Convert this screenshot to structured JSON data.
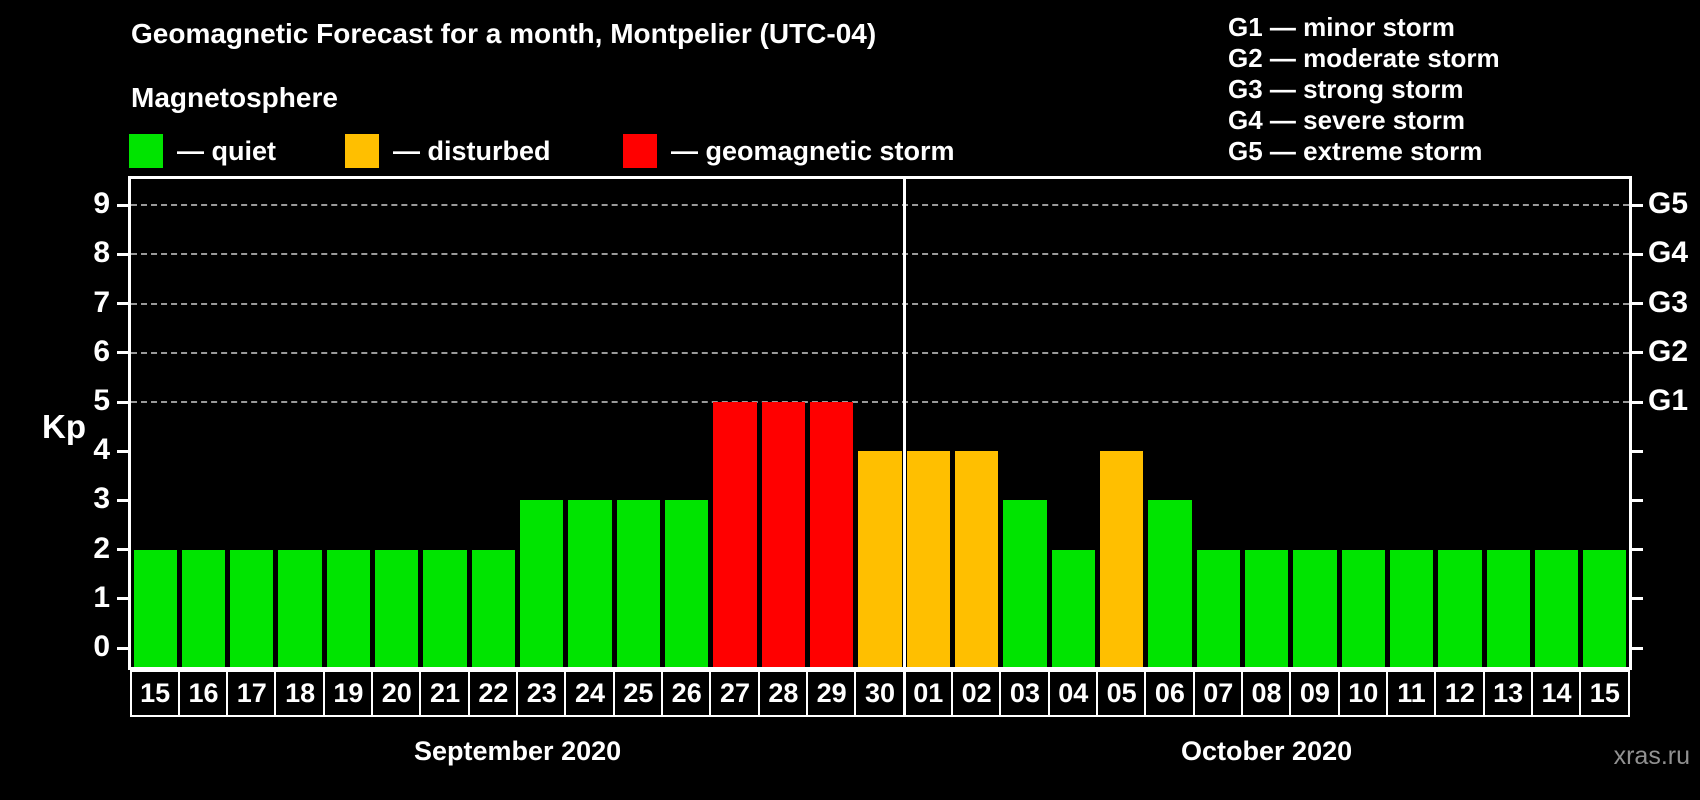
{
  "header": {
    "title": "Geomagnetic Forecast for a month, Montpelier (UTC-04)",
    "subtitle": "Magnetosphere"
  },
  "legend": {
    "items": [
      {
        "name": "quiet",
        "label": "— quiet",
        "color": "#00e400"
      },
      {
        "name": "disturbed",
        "label": "— disturbed",
        "color": "#ffbf00"
      },
      {
        "name": "storm",
        "label": "— geomagnetic storm",
        "color": "#ff0000"
      }
    ]
  },
  "g_scale_legend": [
    "G1 — minor storm",
    "G2 — moderate storm",
    "G3 — strong storm",
    "G4 — severe storm",
    "G5 — extreme storm"
  ],
  "watermark": "xras.ru",
  "chart_data": {
    "type": "bar",
    "title": "Geomagnetic Forecast for a month, Montpelier (UTC-04)",
    "ylabel": "Kp",
    "ylim": [
      0,
      9
    ],
    "yticks": [
      0,
      1,
      2,
      3,
      4,
      5,
      6,
      7,
      8,
      9
    ],
    "gridlines_at": [
      5,
      6,
      7,
      8,
      9
    ],
    "grid": "dashed horizontal at storm levels only",
    "right_axis_labels": [
      {
        "kp": 5,
        "label": "G1"
      },
      {
        "kp": 6,
        "label": "G2"
      },
      {
        "kp": 7,
        "label": "G3"
      },
      {
        "kp": 8,
        "label": "G4"
      },
      {
        "kp": 9,
        "label": "G5"
      }
    ],
    "status_colors": {
      "quiet": "#00e400",
      "disturbed": "#ffbf00",
      "storm": "#ff0000"
    },
    "month_groups": [
      {
        "label": "September 2020",
        "count": 16
      },
      {
        "label": "October 2020",
        "count": 15
      }
    ],
    "bars": [
      {
        "day": "15",
        "kp": 2,
        "status": "quiet"
      },
      {
        "day": "16",
        "kp": 2,
        "status": "quiet"
      },
      {
        "day": "17",
        "kp": 2,
        "status": "quiet"
      },
      {
        "day": "18",
        "kp": 2,
        "status": "quiet"
      },
      {
        "day": "19",
        "kp": 2,
        "status": "quiet"
      },
      {
        "day": "20",
        "kp": 2,
        "status": "quiet"
      },
      {
        "day": "21",
        "kp": 2,
        "status": "quiet"
      },
      {
        "day": "22",
        "kp": 2,
        "status": "quiet"
      },
      {
        "day": "23",
        "kp": 3,
        "status": "quiet"
      },
      {
        "day": "24",
        "kp": 3,
        "status": "quiet"
      },
      {
        "day": "25",
        "kp": 3,
        "status": "quiet"
      },
      {
        "day": "26",
        "kp": 3,
        "status": "quiet"
      },
      {
        "day": "27",
        "kp": 5,
        "status": "storm"
      },
      {
        "day": "28",
        "kp": 5,
        "status": "storm"
      },
      {
        "day": "29",
        "kp": 5,
        "status": "storm"
      },
      {
        "day": "30",
        "kp": 4,
        "status": "disturbed"
      },
      {
        "day": "01",
        "kp": 4,
        "status": "disturbed"
      },
      {
        "day": "02",
        "kp": 4,
        "status": "disturbed"
      },
      {
        "day": "03",
        "kp": 3,
        "status": "quiet"
      },
      {
        "day": "04",
        "kp": 2,
        "status": "quiet"
      },
      {
        "day": "05",
        "kp": 4,
        "status": "disturbed"
      },
      {
        "day": "06",
        "kp": 3,
        "status": "quiet"
      },
      {
        "day": "07",
        "kp": 2,
        "status": "quiet"
      },
      {
        "day": "08",
        "kp": 2,
        "status": "quiet"
      },
      {
        "day": "09",
        "kp": 2,
        "status": "quiet"
      },
      {
        "day": "10",
        "kp": 2,
        "status": "quiet"
      },
      {
        "day": "11",
        "kp": 2,
        "status": "quiet"
      },
      {
        "day": "12",
        "kp": 2,
        "status": "quiet"
      },
      {
        "day": "13",
        "kp": 2,
        "status": "quiet"
      },
      {
        "day": "14",
        "kp": 2,
        "status": "quiet"
      },
      {
        "day": "15",
        "kp": 2,
        "status": "quiet"
      }
    ]
  }
}
